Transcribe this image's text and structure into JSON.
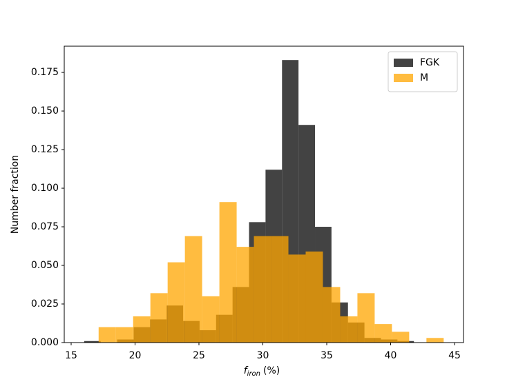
{
  "chart_data": {
    "type": "histogram",
    "xlabel": {
      "symbol": "f",
      "subscript": "iron",
      "unit": "(%)"
    },
    "ylabel": "Number fraction",
    "series": [
      {
        "name": "FGK",
        "color": "#222222",
        "opacity": 0.85,
        "bins": [
          16.02,
          17.31,
          18.6,
          19.89,
          21.18,
          22.47,
          23.76,
          25.05,
          26.34,
          27.63,
          28.92,
          30.21,
          31.5,
          32.79,
          34.08,
          35.37,
          36.66,
          37.95,
          39.24,
          40.53,
          41.82
        ],
        "values": [
          0.001,
          0,
          0.002,
          0.01,
          0.015,
          0.024,
          0.014,
          0.008,
          0.018,
          0.036,
          0.078,
          0.112,
          0.183,
          0.141,
          0.075,
          0.026,
          0.013,
          0.003,
          0.002,
          0.001
        ]
      },
      {
        "name": "M",
        "color": "#ffa500",
        "opacity": 0.75,
        "bins": [
          17.15,
          18.5,
          19.85,
          21.2,
          22.55,
          23.9,
          25.25,
          26.6,
          27.95,
          29.3,
          30.65,
          32.0,
          33.35,
          34.7,
          36.05,
          37.4,
          38.75,
          40.1,
          41.45,
          42.8,
          44.15
        ],
        "values": [
          0.01,
          0.01,
          0.017,
          0.032,
          0.052,
          0.069,
          0.03,
          0.091,
          0.062,
          0.069,
          0.069,
          0.057,
          0.059,
          0.036,
          0.017,
          0.032,
          0.012,
          0.007,
          0,
          0.003
        ]
      }
    ],
    "xlim": [
      14.46,
      45.7
    ],
    "ylim": [
      0,
      0.192
    ],
    "xticks": [
      15,
      20,
      25,
      30,
      35,
      40,
      45
    ],
    "yticks": [
      {
        "value": 0,
        "label": "0.000"
      },
      {
        "value": 0.025,
        "label": "0.025"
      },
      {
        "value": 0.05,
        "label": "0.050"
      },
      {
        "value": 0.075,
        "label": "0.075"
      },
      {
        "value": 0.1,
        "label": "0.100"
      },
      {
        "value": 0.125,
        "label": "0.125"
      },
      {
        "value": 0.15,
        "label": "0.150"
      },
      {
        "value": 0.175,
        "label": "0.175"
      }
    ],
    "legend": "upper right"
  }
}
